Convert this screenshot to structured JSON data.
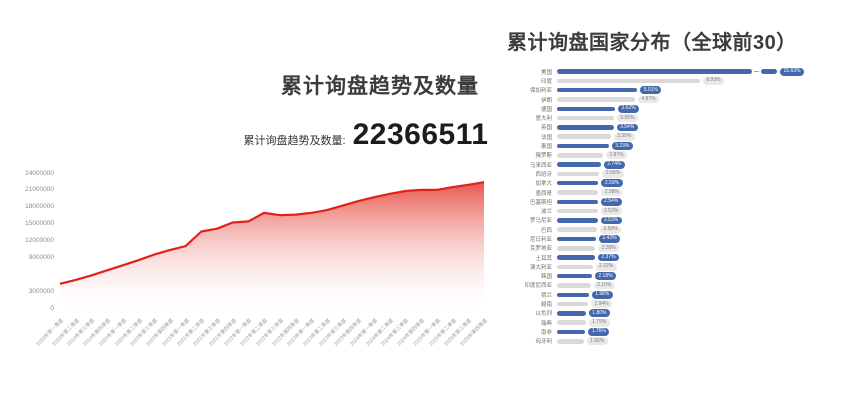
{
  "left_chart": {
    "title": "累计询盘趋势及数量",
    "stat_label": "累计询盘趋势及数量:",
    "stat_value": "22366511"
  },
  "right_chart": {
    "title": "累计询盘国家分布（全球前30）"
  },
  "colors": {
    "line_red": "#e0221a",
    "area_top": "#e23a30",
    "bar_blue": "#4468ae",
    "bar_gray": "#d9d9d9",
    "bubble_gray_bg": "#e9e9e9",
    "break_dash": "#8ea4cd"
  },
  "chart_data": [
    {
      "type": "area",
      "title": "累计询盘趋势及数量",
      "total_label": "累计询盘趋势及数量:",
      "total_value": 22366511,
      "x": [
        "2019年第一季度",
        "2019年第二季度",
        "2019年第三季度",
        "2019年第四季度",
        "2020年第一季度",
        "2020年第二季度",
        "2020年第三季度",
        "2020年第四季度",
        "2021年第一季度",
        "2021年第二季度",
        "2021年第三季度",
        "2021年第四季度",
        "2022年第一季度",
        "2022年第二季度",
        "2022年第三季度",
        "2022年第四季度",
        "2023年第一季度",
        "2023年第二季度",
        "2023年第三季度",
        "2023年第四季度",
        "2024年第一季度",
        "2024年第二季度",
        "2024年第三季度",
        "2024年第四季度",
        "2025年第一季度",
        "2025年第二季度",
        "2025年第三季度",
        "2025年第四季度"
      ],
      "values": [
        4300000,
        5000000,
        5800000,
        6700000,
        7600000,
        8500000,
        9500000,
        10300000,
        11000000,
        13600000,
        14100000,
        15200000,
        15400000,
        16900000,
        16500000,
        16600000,
        16900000,
        17400000,
        18200000,
        19000000,
        19700000,
        20300000,
        20800000,
        21000000,
        21000000,
        21500000,
        21900000,
        22366511
      ],
      "ylim": [
        0,
        24000000
      ],
      "yticks": [
        24000000,
        21000000,
        18000000,
        15000000,
        12000000,
        9000000,
        3000000,
        0
      ],
      "grid": false,
      "legend": "none"
    },
    {
      "type": "bar",
      "orientation": "horizontal",
      "title": "累计询盘国家分布（全球前30）",
      "unit": "%",
      "legend": "none",
      "first_bar_broken": true,
      "categories": [
        "美国",
        "印度",
        "保加利亚",
        "伊朗",
        "德国",
        "意大利",
        "英国",
        "法国",
        "泰国",
        "俄罗斯",
        "马来西亚",
        "西班牙",
        "加拿大",
        "墨西哥",
        "巴基斯坦",
        "波兰",
        "罗马尼亚",
        "巴西",
        "尼日利亚",
        "克罗地亚",
        "土耳其",
        "澳大利亚",
        "韩国",
        "印度尼西亚",
        "荷兰",
        "越南",
        "以色列",
        "瑞典",
        "南非",
        "匈牙利"
      ],
      "values": [
        15.63,
        8.93,
        5.01,
        4.87,
        3.62,
        3.55,
        3.54,
        3.35,
        3.23,
        2.87,
        2.74,
        2.65,
        2.59,
        2.58,
        2.54,
        2.53,
        2.53,
        2.5,
        2.43,
        2.39,
        2.37,
        2.22,
        2.18,
        2.1,
        1.98,
        1.94,
        1.8,
        1.79,
        1.76,
        1.66
      ],
      "value_labels": [
        "15.63%",
        "8.93%",
        "5.01%",
        "4.87%",
        "3.62%",
        "3.55%",
        "3.54%",
        "3.35%",
        "3.23%",
        "2.87%",
        "2.74%",
        "2.65%",
        "2.59%",
        "2.58%",
        "2.54%",
        "2.53%",
        "2.53%",
        "2.50%",
        "2.43%",
        "2.39%",
        "2.37%",
        "2.22%",
        "2.18%",
        "2.10%",
        "1.98%",
        "1.94%",
        "1.80%",
        "1.79%",
        "1.76%",
        "1.66%"
      ]
    }
  ]
}
